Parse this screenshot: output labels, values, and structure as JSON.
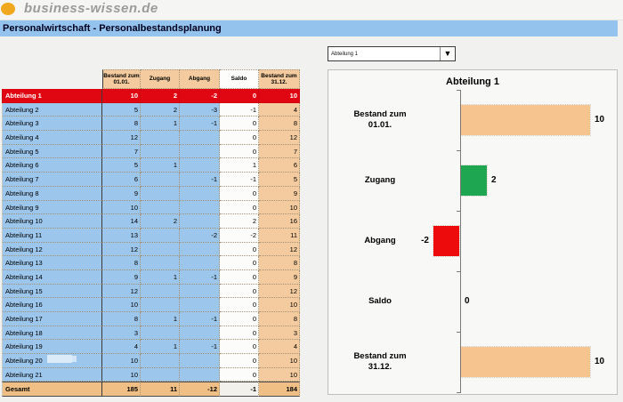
{
  "header": {
    "logo_text": "business-wissen.de"
  },
  "title_bar": {
    "title": "Personalwirtschaft - Personalbestandsplanung"
  },
  "selector": {
    "value": "Abteilung 1"
  },
  "table": {
    "columns": [
      "Bestand zum 01.01.",
      "Zugang",
      "Abgang",
      "Saldo",
      "Bestand zum 31.12."
    ],
    "rows": [
      {
        "label": "Abteilung 1",
        "values": [
          "10",
          "2",
          "-2",
          "0",
          "10"
        ],
        "selected": true
      },
      {
        "label": "Abteilung 2",
        "values": [
          "5",
          "2",
          "-3",
          "-1",
          "4"
        ]
      },
      {
        "label": "Abteilung 3",
        "values": [
          "8",
          "1",
          "-1",
          "0",
          "8"
        ]
      },
      {
        "label": "Abteilung 4",
        "values": [
          "12",
          "",
          "",
          "0",
          "12"
        ]
      },
      {
        "label": "Abteilung 5",
        "values": [
          "7",
          "",
          "",
          "0",
          "7"
        ]
      },
      {
        "label": "Abteilung 6",
        "values": [
          "5",
          "1",
          "",
          "1",
          "6"
        ]
      },
      {
        "label": "Abteilung 7",
        "values": [
          "6",
          "",
          "-1",
          "-1",
          "5"
        ]
      },
      {
        "label": "Abteilung 8",
        "values": [
          "9",
          "",
          "",
          "0",
          "9"
        ]
      },
      {
        "label": "Abteilung 9",
        "values": [
          "10",
          "",
          "",
          "0",
          "10"
        ]
      },
      {
        "label": "Abteilung 10",
        "values": [
          "14",
          "2",
          "",
          "2",
          "16"
        ]
      },
      {
        "label": "Abteilung 11",
        "values": [
          "13",
          "",
          "-2",
          "-2",
          "11"
        ]
      },
      {
        "label": "Abteilung 12",
        "values": [
          "12",
          "",
          "",
          "0",
          "12"
        ]
      },
      {
        "label": "Abteilung 13",
        "values": [
          "8",
          "",
          "",
          "0",
          "8"
        ]
      },
      {
        "label": "Abteilung 14",
        "values": [
          "9",
          "1",
          "-1",
          "0",
          "9"
        ]
      },
      {
        "label": "Abteilung 15",
        "values": [
          "12",
          "",
          "",
          "0",
          "12"
        ]
      },
      {
        "label": "Abteilung 16",
        "values": [
          "10",
          "",
          "",
          "0",
          "10"
        ]
      },
      {
        "label": "Abteilung 17",
        "values": [
          "8",
          "1",
          "-1",
          "0",
          "8"
        ]
      },
      {
        "label": "Abteilung 18",
        "values": [
          "3",
          "",
          "",
          "0",
          "3"
        ]
      },
      {
        "label": "Abteilung 19",
        "values": [
          "4",
          "1",
          "-1",
          "0",
          "4"
        ]
      },
      {
        "label": "Abteilung 20",
        "values": [
          "10",
          "",
          "",
          "0",
          "10"
        ]
      },
      {
        "label": "Abteilung 21",
        "values": [
          "10",
          "",
          "",
          "0",
          "10"
        ]
      }
    ],
    "total_row": {
      "label": "Gesamt",
      "values": [
        "185",
        "11",
        "-12",
        "-1",
        "184"
      ]
    }
  },
  "chart_data": {
    "type": "bar",
    "orientation": "horizontal",
    "title": "Abteilung 1",
    "categories": [
      "Bestand zum\n01.01.",
      "Zugang",
      "Abgang",
      "Saldo",
      "Bestand zum\n31.12."
    ],
    "values": [
      10,
      2,
      -2,
      0,
      10
    ],
    "value_labels": [
      "10",
      "2",
      "-2",
      "0",
      "10"
    ],
    "bar_colors": [
      "#F5C48F",
      "#1FA650",
      "#EE0B0B",
      "#F5C48F",
      "#F5C48F"
    ],
    "xlim": [
      -3,
      12
    ],
    "baseline": 0,
    "grid": false,
    "legend": false
  },
  "colors": {
    "title_bar_bg": "#94C3EE",
    "row_blue": "#9CC6EC",
    "header_tan": "#F3CB9E",
    "total_tan": "#EFBF85",
    "selected_red": "#E00713",
    "bar_tan": "#F5C48F",
    "bar_green": "#1FA650",
    "bar_red": "#EE0B0B",
    "logo_orange": "#F0A81E"
  }
}
